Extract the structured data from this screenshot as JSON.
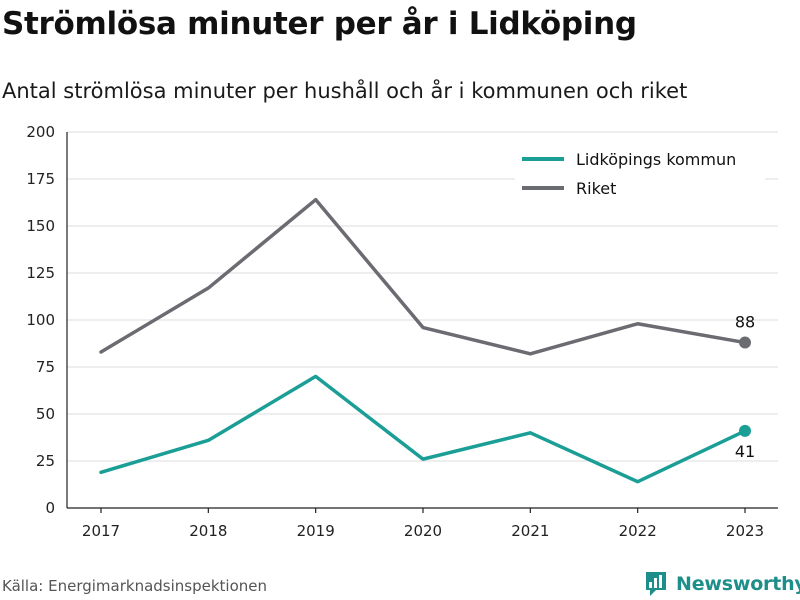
{
  "header": {
    "title": "Strömlösa minuter per år i Lidköping",
    "subtitle": "Antal strömlösa minuter per hushåll och år i kommunen och riket"
  },
  "footer": {
    "source": "Källa: Energimarknadsinspektionen",
    "brand": "Newsworthy"
  },
  "chart_data": {
    "type": "line",
    "x": [
      "2017",
      "2018",
      "2019",
      "2020",
      "2021",
      "2022",
      "2023"
    ],
    "ylim": [
      0,
      200
    ],
    "yticks": [
      0,
      25,
      50,
      75,
      100,
      125,
      150,
      175,
      200
    ],
    "grid": true,
    "legend_position": "top-right",
    "series": [
      {
        "name": "Lidköpings kommun",
        "color": "#1a9e96",
        "values": [
          19,
          36,
          70,
          26,
          40,
          14,
          41
        ],
        "end_label": "41"
      },
      {
        "name": "Riket",
        "color": "#6b6b72",
        "values": [
          83,
          117,
          164,
          96,
          82,
          98,
          88
        ],
        "end_label": "88"
      }
    ]
  }
}
